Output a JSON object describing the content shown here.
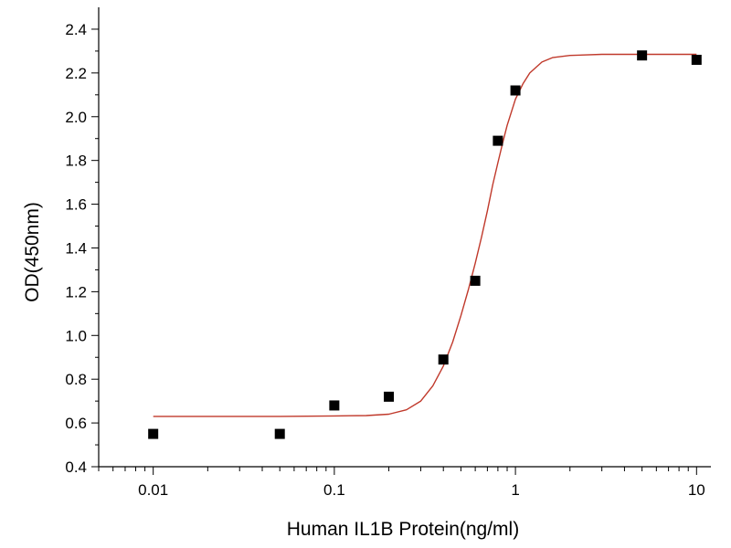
{
  "chart_data": {
    "type": "scatter",
    "title": "",
    "xlabel": "Human IL1B Protein(ng/ml)",
    "ylabel": "OD(450nm)",
    "xscale": "log",
    "xlim": [
      0.005,
      12
    ],
    "ylim": [
      0.4,
      2.5
    ],
    "grid": false,
    "legend": "none",
    "x_ticks": [
      0.01,
      0.1,
      1,
      10
    ],
    "x_tick_labels": [
      "0.01",
      "0.1",
      "1",
      "10"
    ],
    "y_ticks": [
      0.4,
      0.6,
      0.8,
      1.0,
      1.2,
      1.4,
      1.6,
      1.8,
      2.0,
      2.2,
      2.4
    ],
    "y_tick_labels": [
      "0.4",
      "0.6",
      "0.8",
      "1.0",
      "1.2",
      "1.4",
      "1.6",
      "1.8",
      "2.0",
      "2.2",
      "2.4"
    ],
    "series": [
      {
        "type": "scatter",
        "marker": "square",
        "color": "#000000",
        "x": [
          0.01,
          0.05,
          0.1,
          0.2,
          0.4,
          0.6,
          0.8,
          1,
          5,
          10
        ],
        "y": [
          0.55,
          0.55,
          0.68,
          0.72,
          0.89,
          1.25,
          1.89,
          2.12,
          2.28,
          2.26
        ]
      },
      {
        "type": "line",
        "style": "fitted-curve",
        "color": "#c0392b",
        "x": [
          0.01,
          0.05,
          0.1,
          0.15,
          0.2,
          0.25,
          0.3,
          0.35,
          0.4,
          0.45,
          0.5,
          0.55,
          0.6,
          0.65,
          0.7,
          0.75,
          0.8,
          0.85,
          0.9,
          1,
          1.1,
          1.2,
          1.4,
          1.6,
          2,
          3,
          5,
          10
        ],
        "y": [
          0.63,
          0.63,
          0.632,
          0.634,
          0.64,
          0.66,
          0.7,
          0.77,
          0.86,
          0.97,
          1.09,
          1.21,
          1.33,
          1.45,
          1.57,
          1.69,
          1.79,
          1.88,
          1.96,
          2.08,
          2.15,
          2.2,
          2.25,
          2.27,
          2.28,
          2.285,
          2.285,
          2.285
        ]
      }
    ]
  }
}
